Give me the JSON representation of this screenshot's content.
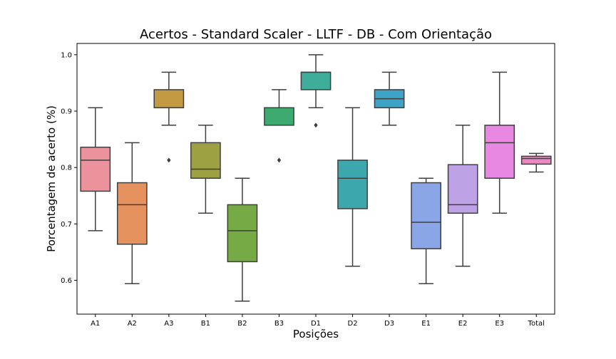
{
  "chart_data": {
    "type": "boxplot",
    "title": "Acertos - Standard Scaler - LLTF - DB - Com Orientação",
    "xlabel": "Posições",
    "ylabel": "Porcentagem de acerto (%)",
    "ylim": [
      0.54,
      1.02
    ],
    "yticks": [
      "0.6",
      "0.7",
      "0.8",
      "0.9",
      "1.0"
    ],
    "grid": false,
    "categories": [
      "A1",
      "A2",
      "A3",
      "B1",
      "B2",
      "B3",
      "D1",
      "D2",
      "D3",
      "E1",
      "E2",
      "E3",
      "Total"
    ],
    "colors": [
      "#ec929c",
      "#e5925f",
      "#c39a41",
      "#9da142",
      "#76aa45",
      "#3daa6f",
      "#3eae9b",
      "#3ca8ae",
      "#3ea4c7",
      "#8aa6e6",
      "#bda2e6",
      "#e888e2",
      "#ed86c3"
    ],
    "boxes": [
      {
        "label": "A1",
        "whislo": 0.688,
        "q1": 0.758,
        "med": 0.813,
        "q3": 0.836,
        "whishi": 0.906,
        "fliers": []
      },
      {
        "label": "A2",
        "whislo": 0.594,
        "q1": 0.664,
        "med": 0.734,
        "q3": 0.773,
        "whishi": 0.844,
        "fliers": []
      },
      {
        "label": "A3",
        "whislo": 0.875,
        "q1": 0.906,
        "med": 0.906,
        "q3": 0.938,
        "whishi": 0.969,
        "fliers": [
          0.813
        ]
      },
      {
        "label": "B1",
        "whislo": 0.719,
        "q1": 0.781,
        "med": 0.797,
        "q3": 0.844,
        "whishi": 0.875,
        "fliers": []
      },
      {
        "label": "B2",
        "whislo": 0.563,
        "q1": 0.633,
        "med": 0.688,
        "q3": 0.734,
        "whishi": 0.781,
        "fliers": []
      },
      {
        "label": "B3",
        "whislo": 0.875,
        "q1": 0.875,
        "med": 0.906,
        "q3": 0.906,
        "whishi": 0.938,
        "fliers": [
          0.813
        ]
      },
      {
        "label": "D1",
        "whislo": 0.906,
        "q1": 0.938,
        "med": 0.969,
        "q3": 0.969,
        "whishi": 1.0,
        "fliers": [
          0.875
        ]
      },
      {
        "label": "D2",
        "whislo": 0.625,
        "q1": 0.727,
        "med": 0.781,
        "q3": 0.813,
        "whishi": 0.906,
        "fliers": []
      },
      {
        "label": "D3",
        "whislo": 0.875,
        "q1": 0.906,
        "med": 0.922,
        "q3": 0.938,
        "whishi": 0.969,
        "fliers": []
      },
      {
        "label": "E1",
        "whislo": 0.594,
        "q1": 0.656,
        "med": 0.703,
        "q3": 0.773,
        "whishi": 0.781,
        "fliers": []
      },
      {
        "label": "E2",
        "whislo": 0.625,
        "q1": 0.719,
        "med": 0.734,
        "q3": 0.805,
        "whishi": 0.875,
        "fliers": []
      },
      {
        "label": "E3",
        "whislo": 0.719,
        "q1": 0.781,
        "med": 0.844,
        "q3": 0.875,
        "whishi": 0.969,
        "fliers": []
      },
      {
        "label": "Total",
        "whislo": 0.792,
        "q1": 0.806,
        "med": 0.816,
        "q3": 0.82,
        "whishi": 0.825,
        "fliers": []
      }
    ]
  }
}
